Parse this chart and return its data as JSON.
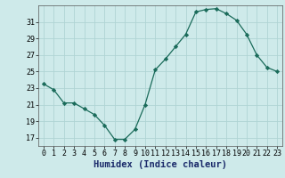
{
  "x": [
    0,
    1,
    2,
    3,
    4,
    5,
    6,
    7,
    8,
    9,
    10,
    11,
    12,
    13,
    14,
    15,
    16,
    17,
    18,
    19,
    20,
    21,
    22,
    23
  ],
  "y": [
    23.5,
    22.8,
    21.2,
    21.2,
    20.5,
    19.8,
    18.5,
    16.8,
    16.8,
    18.0,
    21.0,
    25.2,
    26.5,
    28.0,
    29.5,
    32.2,
    32.5,
    32.6,
    32.0,
    31.2,
    29.5,
    27.0,
    25.5,
    25.0
  ],
  "line_color": "#1a6b5a",
  "marker": "D",
  "marker_size": 2.2,
  "bg_color": "#ceeaea",
  "grid_color": "#afd4d4",
  "xlabel": "Humidex (Indice chaleur)",
  "xlabel_fontsize": 7.5,
  "tick_fontsize": 6.0,
  "ylim": [
    16,
    33
  ],
  "xlim": [
    -0.5,
    23.5
  ],
  "yticks": [
    17,
    19,
    21,
    23,
    25,
    27,
    29,
    31
  ],
  "xticks": [
    0,
    1,
    2,
    3,
    4,
    5,
    6,
    7,
    8,
    9,
    10,
    11,
    12,
    13,
    14,
    15,
    16,
    17,
    18,
    19,
    20,
    21,
    22,
    23
  ]
}
